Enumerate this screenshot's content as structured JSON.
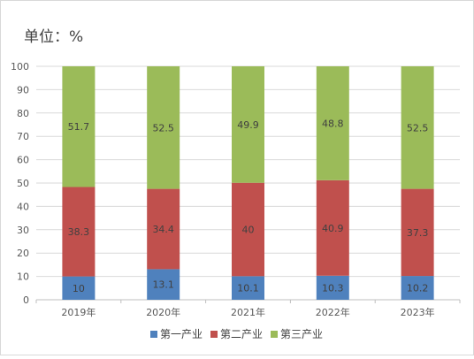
{
  "chart_data": {
    "type": "bar",
    "stacked": true,
    "title": "单位：%",
    "xlabel": "",
    "ylabel": "",
    "ylim": [
      0,
      100
    ],
    "yticks": [
      0,
      10,
      20,
      30,
      40,
      50,
      60,
      70,
      80,
      90,
      100
    ],
    "grid": true,
    "legend_position": "bottom",
    "categories": [
      "2019年",
      "2020年",
      "2021年",
      "2022年",
      "2023年"
    ],
    "series": [
      {
        "name": "第一产业",
        "color": "#4f81bd",
        "values": [
          10,
          13.1,
          10.1,
          10.3,
          10.2
        ]
      },
      {
        "name": "第二产业",
        "color": "#c0504d",
        "values": [
          38.3,
          34.4,
          40,
          40.9,
          37.3
        ]
      },
      {
        "name": "第三产业",
        "color": "#9bbb59",
        "values": [
          51.7,
          52.5,
          49.9,
          48.8,
          52.5
        ]
      }
    ]
  }
}
